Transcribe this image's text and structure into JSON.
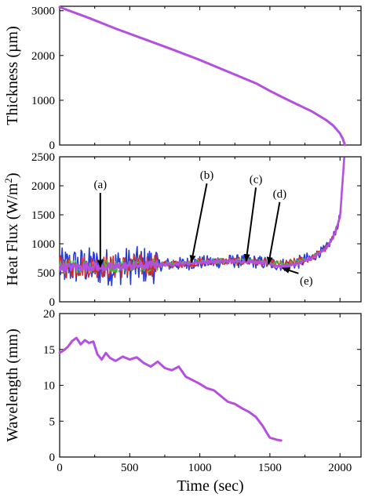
{
  "chart_data": [
    {
      "type": "line",
      "panel": "top",
      "title": "",
      "xlabel": "",
      "ylabel": "Thickness (µm)",
      "xlim": [
        0,
        2150
      ],
      "ylim": [
        0,
        3100
      ],
      "xticks": [
        0,
        500,
        1000,
        1500,
        2000
      ],
      "yticks": [
        0,
        1000,
        2000,
        3000
      ],
      "ytick_labels": [
        "0",
        "1000",
        "2000",
        "3000"
      ],
      "series": [
        {
          "color": "#b44fe0",
          "x": [
            0,
            200,
            400,
            600,
            800,
            1000,
            1200,
            1400,
            1500,
            1600,
            1700,
            1800,
            1900,
            1950,
            2000,
            2020,
            2035
          ],
          "y": [
            3080,
            2850,
            2600,
            2370,
            2140,
            1900,
            1640,
            1380,
            1210,
            1050,
            900,
            750,
            560,
            440,
            260,
            140,
            0
          ]
        }
      ]
    },
    {
      "type": "line",
      "panel": "middle",
      "title": "",
      "xlabel": "",
      "ylabel": "Heat Flux (W/m²)",
      "ylabel_base": "Heat Flux (W/m",
      "ylabel_sup": "2",
      "ylabel_close": ")",
      "xlim": [
        0,
        2150
      ],
      "ylim": [
        0,
        2500
      ],
      "xticks": [
        0,
        500,
        1000,
        1500,
        2000
      ],
      "yticks": [
        0,
        500,
        1000,
        1500,
        2000,
        2500
      ],
      "ytick_labels": [
        "0",
        "500",
        "1000",
        "1500",
        "2000",
        "2500"
      ],
      "series": [
        {
          "color": "#2a3cd6",
          "noise": 330,
          "x": [
            0,
            100,
            200,
            300,
            400,
            500,
            600,
            700,
            800,
            900,
            1000,
            1100,
            1200,
            1300,
            1400,
            1500,
            1600,
            1700,
            1800,
            1900,
            1950,
            2000,
            2030
          ],
          "y": [
            600,
            610,
            620,
            600,
            610,
            620,
            630,
            640,
            650,
            660,
            680,
            690,
            700,
            700,
            690,
            660,
            640,
            680,
            760,
            920,
            1100,
            1450,
            2450
          ]
        },
        {
          "color": "#d62a2a",
          "noise": 200,
          "x": [
            0,
            200,
            400,
            600,
            800,
            1000,
            1200,
            1400,
            1600,
            1800,
            1900,
            1950,
            2000,
            2030
          ],
          "y": [
            600,
            620,
            600,
            630,
            650,
            680,
            700,
            690,
            640,
            760,
            920,
            1100,
            1450,
            2450
          ]
        },
        {
          "color": "#4ab84a",
          "noise": 120,
          "x": [
            0,
            200,
            400,
            600,
            800,
            1000,
            1200,
            1400,
            1600,
            1800,
            1900,
            1950,
            2000,
            2030
          ],
          "y": [
            600,
            620,
            620,
            640,
            660,
            690,
            710,
            700,
            650,
            760,
            920,
            1100,
            1450,
            2450
          ]
        },
        {
          "color": "#b44fe0",
          "noise": 70,
          "x": [
            0,
            100,
            200,
            300,
            400,
            500,
            600,
            700,
            800,
            900,
            1000,
            1100,
            1200,
            1300,
            1400,
            1500,
            1550,
            1600,
            1700,
            1800,
            1900,
            1950,
            2000,
            2030
          ],
          "y": [
            590,
            600,
            610,
            600,
            600,
            620,
            630,
            640,
            650,
            660,
            680,
            690,
            700,
            700,
            690,
            660,
            620,
            600,
            650,
            760,
            920,
            1100,
            1450,
            2480
          ]
        }
      ],
      "annotations": [
        {
          "text": "(a)",
          "label_x": 290,
          "label_y": 1960,
          "arrow_x": 290,
          "arrow_y": 600
        },
        {
          "text": "(b)",
          "label_x": 1050,
          "label_y": 2120,
          "arrow_x": 940,
          "arrow_y": 680
        },
        {
          "text": "(c)",
          "label_x": 1400,
          "label_y": 2050,
          "arrow_x": 1330,
          "arrow_y": 700
        },
        {
          "text": "(d)",
          "label_x": 1570,
          "label_y": 1800,
          "arrow_x": 1490,
          "arrow_y": 650
        },
        {
          "text": "(e)",
          "label_x": 1760,
          "label_y": 300,
          "arrow_x": 1590,
          "arrow_y": 580
        }
      ]
    },
    {
      "type": "line",
      "panel": "bottom",
      "title": "",
      "xlabel": "Time (sec)",
      "ylabel": "Wavelength (mm)",
      "xlim": [
        0,
        2150
      ],
      "ylim": [
        0,
        20
      ],
      "xticks": [
        0,
        500,
        1000,
        1500,
        2000
      ],
      "xtick_labels": [
        "0",
        "500",
        "1000",
        "1500",
        "2000"
      ],
      "yticks": [
        0,
        5,
        10,
        15,
        20
      ],
      "ytick_labels": [
        "0",
        "5",
        "10",
        "15",
        "20"
      ],
      "series": [
        {
          "color": "#b44fe0",
          "x": [
            0,
            30,
            60,
            90,
            120,
            150,
            180,
            210,
            240,
            270,
            300,
            330,
            360,
            400,
            450,
            500,
            550,
            600,
            650,
            700,
            750,
            800,
            850,
            900,
            950,
            1000,
            1050,
            1100,
            1150,
            1200,
            1250,
            1300,
            1350,
            1400,
            1450,
            1480,
            1500,
            1550,
            1580
          ],
          "y": [
            14.5,
            14.9,
            15.4,
            16.2,
            16.6,
            15.7,
            16.3,
            15.9,
            16.1,
            14.3,
            13.6,
            14.5,
            13.8,
            13.4,
            14.0,
            13.6,
            13.9,
            13.1,
            12.6,
            13.3,
            12.4,
            12.1,
            12.6,
            11.2,
            10.7,
            10.2,
            9.6,
            9.3,
            8.5,
            7.7,
            7.4,
            6.8,
            6.3,
            5.6,
            4.3,
            3.3,
            2.7,
            2.4,
            2.3
          ]
        }
      ]
    }
  ]
}
